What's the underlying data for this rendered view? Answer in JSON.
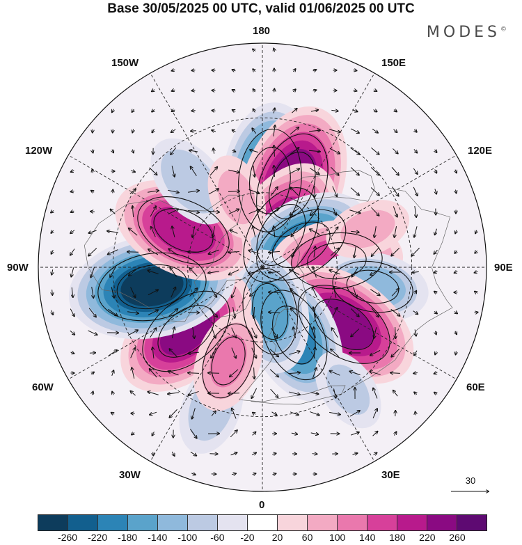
{
  "title": "Base 30/05/2025 00 UTC, valid 01/06/2025 00 UTC",
  "brand": "MODES",
  "brand_mark": "©",
  "longitude_labels": {
    "top": "180",
    "bottom": "0",
    "left": "90W",
    "right": "90E",
    "upper_left": "150W",
    "upper_right": "150E",
    "mid_left_upper": "120W",
    "mid_right_upper": "120E",
    "lower_left": "60W",
    "lower_right": "60E",
    "bottom_left": "30W",
    "bottom_right": "30E"
  },
  "reference_vector": "30",
  "colorbar": {
    "colors": [
      "#0d3c5c",
      "#125f8e",
      "#2c84b6",
      "#5aa3cb",
      "#8fb9dc",
      "#bccae3",
      "#e4e3f0",
      "#ffffff",
      "#f8d5dc",
      "#f3aac3",
      "#ea78ad",
      "#d7409a",
      "#b81a8c",
      "#8a0a82",
      "#5e0a72"
    ],
    "ticks": [
      "-260",
      "-220",
      "-180",
      "-140",
      "-100",
      "-60",
      "-20",
      "20",
      "60",
      "100",
      "140",
      "180",
      "220",
      "260"
    ]
  },
  "anomaly_centers": [
    {
      "lon": 175,
      "lat": 55,
      "value": -230
    },
    {
      "lon": 160,
      "lat": 55,
      "value": 250
    },
    {
      "lon": 150,
      "lat": 75,
      "value": 230
    },
    {
      "lon": 120,
      "lat": 72,
      "value": -200
    },
    {
      "lon": 95,
      "lat": 60,
      "value": 170
    },
    {
      "lon": 80,
      "lat": 45,
      "value": -120
    },
    {
      "lon": 55,
      "lat": 50,
      "value": 230
    },
    {
      "lon": 25,
      "lat": 60,
      "value": -190
    },
    {
      "lon": 10,
      "lat": 72,
      "value": -150
    },
    {
      "lon": -50,
      "lat": 50,
      "value": 220
    },
    {
      "lon": -80,
      "lat": 45,
      "value": -260
    },
    {
      "lon": -115,
      "lat": 55,
      "value": 200
    },
    {
      "lon": -140,
      "lat": 45,
      "value": -90
    },
    {
      "lon": -160,
      "lat": 60,
      "value": 60
    },
    {
      "lon": 110,
      "lat": 45,
      "value": 60
    },
    {
      "lon": -20,
      "lat": 30,
      "value": -80
    },
    {
      "lon": -20,
      "lat": 50,
      "value": 100
    },
    {
      "lon": 35,
      "lat": 30,
      "value": -60
    }
  ]
}
